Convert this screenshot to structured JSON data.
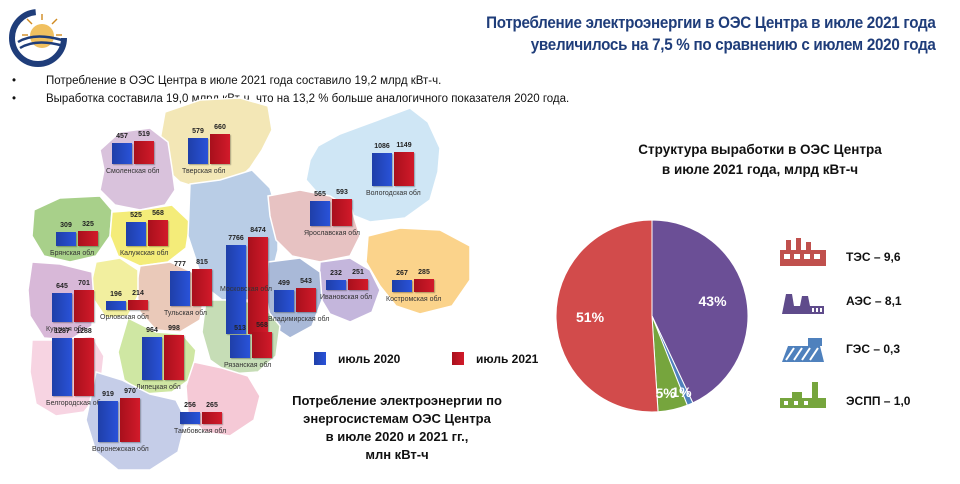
{
  "header": {
    "title_line1": "Потребление электроэнергии в ОЭС Центра в июле 2021 года",
    "title_line2": "увеличилось на 7,5 % по сравнению с июлем 2020 года"
  },
  "bullets": [
    "Потребление в ОЭС Центра в июле 2021 года составило 19,2 млрд кВт-ч.",
    "Выработка составила 19,0 млрд кВт-ч, что на 13,2 % больше аналогичного показателя 2020 года."
  ],
  "map": {
    "legend": {
      "label_2020": "июль 2020",
      "label_2021": "июль 2021"
    },
    "caption": [
      "Потребление электроэнергии по",
      "энергосистемам ОЭС Центра",
      "в июле 2020 и 2021 гг.,",
      "млн кВт-ч"
    ],
    "regions": [
      {
        "name": "Смоленская обл",
        "v2020": 457,
        "v2021": 519
      },
      {
        "name": "Тверская обл",
        "v2020": 579,
        "v2021": 660
      },
      {
        "name": "Вологодская обл",
        "v2020": 1086,
        "v2021": 1149
      },
      {
        "name": "Брянская обл",
        "v2020": 309,
        "v2021": 325
      },
      {
        "name": "Калужская обл",
        "v2020": 525,
        "v2021": 568
      },
      {
        "name": "Московская обл",
        "v2020": 7766,
        "v2021": 8474
      },
      {
        "name": "Ярославская обл",
        "v2020": 565,
        "v2021": 593
      },
      {
        "name": "Курская обл",
        "v2020": 645,
        "v2021": 701
      },
      {
        "name": "Орловская обл",
        "v2020": 196,
        "v2021": 214
      },
      {
        "name": "Тульская обл",
        "v2020": 777,
        "v2021": 815
      },
      {
        "name": "Владимирская обл",
        "v2020": 499,
        "v2021": 543
      },
      {
        "name": "Ивановская обл",
        "v2020": 232,
        "v2021": 251
      },
      {
        "name": "Костромская обл",
        "v2020": 267,
        "v2021": 285
      },
      {
        "name": "Белгородская обл",
        "v2020": 1287,
        "v2021": 1288
      },
      {
        "name": "Липецкая обл",
        "v2020": 964,
        "v2021": 998
      },
      {
        "name": "Рязанская обл",
        "v2020": 513,
        "v2021": 568
      },
      {
        "name": "Воронежская обл",
        "v2020": 919,
        "v2021": 970
      },
      {
        "name": "Тамбовская обл",
        "v2020": 256,
        "v2021": 265
      }
    ]
  },
  "pie": {
    "title_line1": "Структура выработки в ОЭС Центра",
    "title_line2": "в июле 2021 года, млрд кВт-ч",
    "slices": [
      {
        "label": "51%",
        "value": 51,
        "color": "#d24b4b"
      },
      {
        "label": "43%",
        "value": 43,
        "color": "#6b4f96"
      },
      {
        "label": "1%",
        "value": 1,
        "color": "#4f81bd"
      },
      {
        "label": "5%",
        "value": 5,
        "color": "#76a53d"
      }
    ],
    "sources": [
      {
        "label": "ТЭС – 9,6",
        "icon": "tes-icon",
        "color": "#c0504d"
      },
      {
        "label": "АЭС – 8,1",
        "icon": "aes-icon",
        "color": "#5f4b8b"
      },
      {
        "label": "ГЭС – 0,3",
        "icon": "ges-icon",
        "color": "#4f81bd"
      },
      {
        "label": "ЭСПП – 1,0",
        "icon": "espp-icon",
        "color": "#76a53d"
      }
    ]
  }
}
